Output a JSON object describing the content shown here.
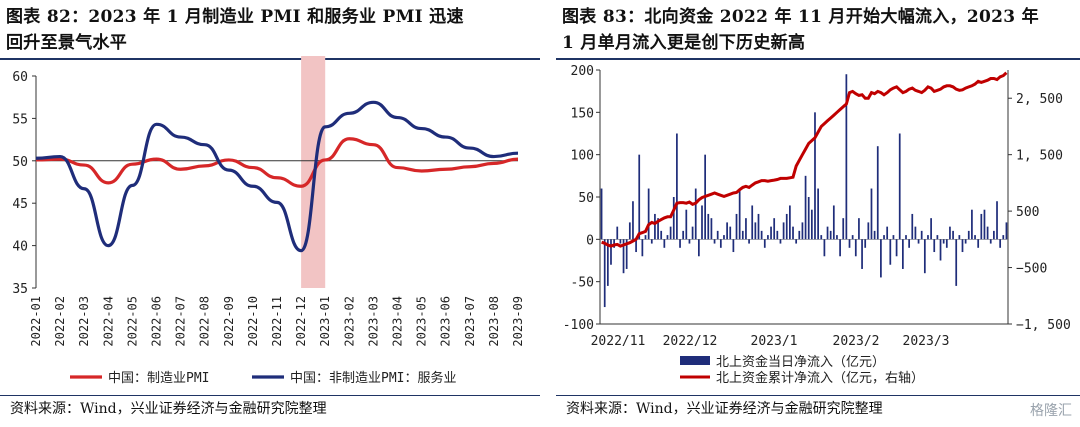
{
  "left": {
    "title_line1": "图表 82：2023 年 1 月制造业 PMI 和服务业 PMI 迅速",
    "title_line2": "回升至景气水平",
    "source": "资料来源：Wind，兴业证券经济与金融研究院整理",
    "colors": {
      "mfg": "#d62728",
      "svc": "#1f2d7a",
      "highlight": "#f2c4c4",
      "rule": "#1f3464"
    }
  },
  "right": {
    "title_line1": "图表 83：北向资金 2022 年 11 月开始大幅流入，2023 年",
    "title_line2": "1 月单月流入更是创下历史新高",
    "source": "资料来源：Wind，兴业证券经济与金融研究院整理",
    "watermark": "格隆汇",
    "colors": {
      "bars": "#1f2d7a",
      "cum": "#c00000"
    }
  },
  "chart_data": [
    {
      "type": "line",
      "ylim": [
        35,
        60
      ],
      "yticks": [
        35,
        40,
        45,
        50,
        55,
        60
      ],
      "reference_line": 50,
      "highlight_between": [
        "2022-12",
        "2023-01"
      ],
      "categories": [
        "2022-01",
        "2022-02",
        "2022-03",
        "2022-04",
        "2022-05",
        "2022-06",
        "2022-07",
        "2022-08",
        "2022-09",
        "2022-10",
        "2022-11",
        "2022-12",
        "2023-01",
        "2023-02",
        "2023-03",
        "2023-04",
        "2023-05",
        "2023-06",
        "2023-07",
        "2023-08",
        "2023-09"
      ],
      "legend_position": "bottom",
      "series": [
        {
          "name": "中国：制造业PMI",
          "values": [
            50.1,
            50.2,
            49.5,
            47.4,
            49.6,
            50.2,
            49.0,
            49.4,
            50.1,
            49.2,
            48.0,
            47.0,
            50.1,
            52.6,
            51.9,
            49.2,
            48.8,
            49.0,
            49.3,
            49.7,
            50.2
          ]
        },
        {
          "name": "中国：非制造业PMI：服务业",
          "values": [
            50.3,
            50.5,
            46.7,
            40.0,
            47.1,
            54.3,
            52.8,
            51.9,
            48.9,
            47.0,
            45.1,
            39.4,
            54.0,
            55.6,
            56.9,
            55.1,
            53.8,
            52.8,
            51.5,
            50.5,
            50.9
          ]
        }
      ]
    },
    {
      "type": "bar+line",
      "ylim_left": [
        -100,
        200
      ],
      "yticks_left": [
        -100,
        -50,
        0,
        50,
        100,
        150,
        200
      ],
      "ylim_right": [
        -1500,
        3000
      ],
      "yticks_right": [
        -1500,
        -500,
        500,
        1500,
        2500
      ],
      "x_tick_labels": [
        "2022/11",
        "2022/12",
        "2023/1",
        "2023/2",
        "2023/3"
      ],
      "legend_position": "bottom",
      "series": [
        {
          "name": "北上资金当日净流入（亿元）",
          "axis": "left",
          "kind": "bar",
          "values": [
            60,
            -80,
            -55,
            -30,
            -10,
            15,
            -5,
            -40,
            -35,
            20,
            45,
            -15,
            100,
            -20,
            5,
            60,
            -5,
            30,
            25,
            10,
            -10,
            5,
            15,
            50,
            125,
            -10,
            10,
            35,
            -5,
            15,
            60,
            -20,
            40,
            100,
            30,
            25,
            -5,
            10,
            -10,
            5,
            20,
            15,
            -15,
            30,
            60,
            10,
            25,
            -5,
            40,
            20,
            30,
            10,
            -10,
            5,
            15,
            25,
            10,
            -5,
            20,
            30,
            40,
            15,
            -5,
            10,
            20,
            75,
            50,
            35,
            150,
            60,
            5,
            -20,
            15,
            10,
            40,
            5,
            -20,
            25,
            195,
            -10,
            5,
            -20,
            25,
            -35,
            -10,
            20,
            60,
            10,
            110,
            -45,
            5,
            15,
            -30,
            5,
            -20,
            125,
            -35,
            5,
            -10,
            30,
            15,
            -5,
            10,
            -40,
            5,
            25,
            -15,
            5,
            -25,
            -5,
            -10,
            15,
            10,
            -55,
            5,
            -15,
            -5,
            10,
            35,
            5,
            -10,
            30,
            35,
            15,
            -5,
            10,
            45,
            -10,
            5,
            20
          ]
        },
        {
          "name": "北上资金累计净流入（亿元，右轴）",
          "axis": "right",
          "kind": "line",
          "values": [
            -50,
            -70,
            -100,
            -120,
            -100,
            -90,
            -120,
            -100,
            -80,
            -60,
            -30,
            0,
            100,
            120,
            140,
            260,
            300,
            280,
            320,
            350,
            380,
            400,
            400,
            520,
            640,
            650,
            650,
            640,
            660,
            620,
            640,
            700,
            740,
            760,
            780,
            800,
            820,
            800,
            780,
            760,
            780,
            800,
            820,
            830,
            880,
            920,
            940,
            920,
            960,
            1000,
            1020,
            1040,
            1040,
            1030,
            1040,
            1050,
            1060,
            1080,
            1080,
            1080,
            1090,
            1100,
            1300,
            1400,
            1500,
            1600,
            1700,
            1750,
            1800,
            1900,
            2000,
            2050,
            2100,
            2150,
            2200,
            2250,
            2300,
            2350,
            2400,
            2600,
            2620,
            2580,
            2550,
            2560,
            2500,
            2500,
            2600,
            2580,
            2620,
            2600,
            2560,
            2600,
            2650,
            2680,
            2700,
            2650,
            2600,
            2620,
            2660,
            2680,
            2640,
            2620,
            2600,
            2640,
            2700,
            2680,
            2620,
            2640,
            2660,
            2700,
            2720,
            2720,
            2700,
            2660,
            2640,
            2650,
            2680,
            2700,
            2720,
            2750,
            2800,
            2780,
            2800,
            2820,
            2850,
            2850,
            2830,
            2880,
            2900,
            2950
          ]
        }
      ]
    }
  ]
}
